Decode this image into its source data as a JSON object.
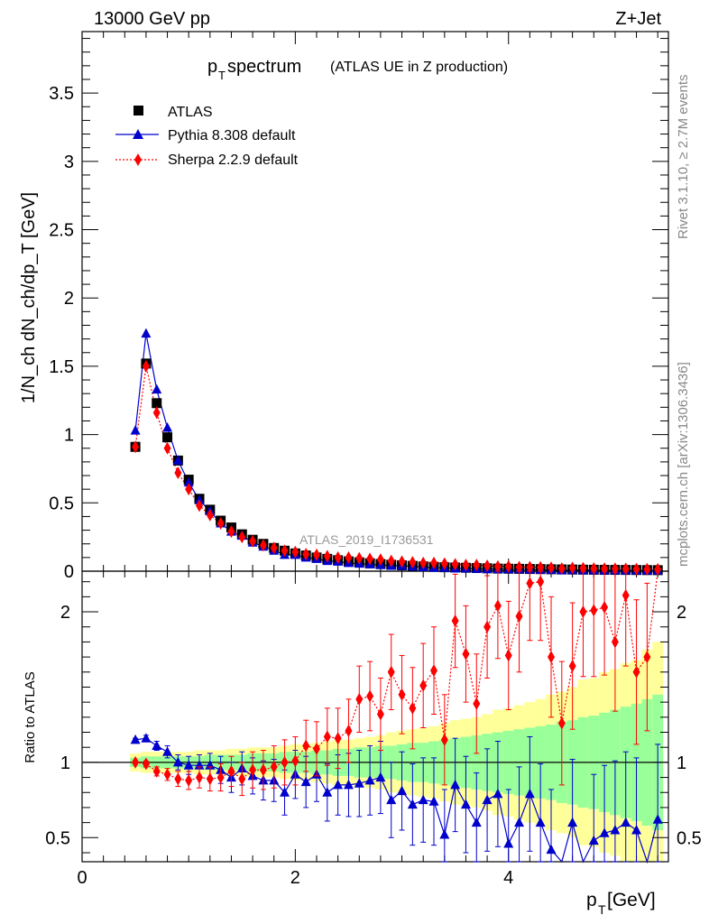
{
  "header": {
    "left": "13000 GeV pp",
    "right": "Z+Jet"
  },
  "side_labels": {
    "rivet": "Rivet 3.1.10, ≥ 2.7M events",
    "mcplots": "mcplots.cern.ch [arXiv:1306.3436]"
  },
  "watermark": "ATLAS_2019_I1736531",
  "chart_data": {
    "type": "scatter",
    "title": "p_T spectrum",
    "title_main": "p",
    "title_sub": "T",
    "title_rest": " spectrum",
    "title_note": "(ATLAS UE in Z production)",
    "xlabel": "p_T [GeV]",
    "xlabel_main": "p",
    "xlabel_sub": "T",
    "xlabel_rest": " [GeV]",
    "ylabel": "1/N_ch dN_ch/dp_T [GeV]",
    "ratio_ylabel": "Ratio to ATLAS",
    "xlim": [
      0,
      5.5
    ],
    "ylim": [
      0,
      3.95
    ],
    "ratio_ylim": [
      0.34,
      2.27
    ],
    "x_ticks": [
      "0",
      "2",
      "4"
    ],
    "y_ticks": [
      "0",
      "0.5",
      "1",
      "1.5",
      "2",
      "2.5",
      "3",
      "3.5"
    ],
    "ratio_ticks": [
      "0.5",
      "1",
      "2"
    ],
    "legend_position": "top-left",
    "x": [
      0.5,
      0.6,
      0.7,
      0.8,
      0.9,
      1.0,
      1.1,
      1.2,
      1.3,
      1.4,
      1.5,
      1.6,
      1.7,
      1.8,
      1.9,
      2.0,
      2.1,
      2.2,
      2.3,
      2.4,
      2.5,
      2.6,
      2.7,
      2.8,
      2.9,
      3.0,
      3.1,
      3.2,
      3.3,
      3.4,
      3.5,
      3.6,
      3.7,
      3.8,
      3.9,
      4.0,
      4.1,
      4.2,
      4.3,
      4.4,
      4.5,
      4.6,
      4.7,
      4.8,
      4.9,
      5.0,
      5.1,
      5.2,
      5.3,
      5.4
    ],
    "series": [
      {
        "name": "ATLAS",
        "color": "#000000",
        "marker": "square",
        "values": [
          0.91,
          1.52,
          1.23,
          0.98,
          0.81,
          0.67,
          0.53,
          0.45,
          0.37,
          0.32,
          0.27,
          0.23,
          0.2,
          0.17,
          0.15,
          0.13,
          0.115,
          0.1,
          0.09,
          0.08,
          0.072,
          0.065,
          0.058,
          0.052,
          0.047,
          0.043,
          0.039,
          0.035,
          0.032,
          0.029,
          0.027,
          0.025,
          0.023,
          0.021,
          0.019,
          0.018,
          0.017,
          0.016,
          0.015,
          0.014,
          0.013,
          0.012,
          0.011,
          0.0105,
          0.01,
          0.0095,
          0.009,
          0.0085,
          0.008,
          0.0075
        ]
      },
      {
        "name": "Pythia 8.308 default",
        "color": "#0000cc",
        "marker": "triangle",
        "values": [
          1.03,
          1.74,
          1.33,
          1.05,
          0.81,
          0.65,
          0.52,
          0.44,
          0.35,
          0.29,
          0.26,
          0.21,
          0.18,
          0.15,
          0.12,
          0.12,
          0.1,
          0.09,
          0.075,
          0.07,
          0.06,
          0.055,
          0.05,
          0.045,
          0.04,
          0.04,
          0.035,
          0.03,
          0.025,
          0.025,
          0.02,
          0.02,
          0.017,
          0.016,
          0.014,
          0.013,
          0.013,
          0.012,
          0.01,
          0.009,
          0.006,
          0.008,
          0.007,
          0.007,
          0.006,
          0.006,
          0.005,
          0.005,
          0.004,
          0.005
        ]
      },
      {
        "name": "Sherpa 2.2.9 default",
        "color": "#ff0000",
        "marker": "diamond",
        "values": [
          0.91,
          1.5,
          1.16,
          0.9,
          0.72,
          0.6,
          0.48,
          0.41,
          0.35,
          0.29,
          0.25,
          0.22,
          0.19,
          0.17,
          0.15,
          0.14,
          0.125,
          0.12,
          0.11,
          0.1,
          0.1,
          0.095,
          0.09,
          0.085,
          0.075,
          0.07,
          0.065,
          0.06,
          0.06,
          0.055,
          0.05,
          0.045,
          0.045,
          0.04,
          0.035,
          0.035,
          0.03,
          0.03,
          0.028,
          0.026,
          0.02,
          0.024,
          0.022,
          0.02,
          0.019,
          0.018,
          0.017,
          0.016,
          0.015,
          0.014
        ]
      }
    ],
    "ratio": {
      "pythia": [
        1.15,
        1.16,
        1.11,
        1.07,
        1.0,
        0.98,
        0.98,
        0.98,
        0.95,
        0.9,
        0.96,
        0.91,
        0.88,
        0.88,
        0.8,
        0.92,
        0.87,
        0.92,
        0.8,
        0.85,
        0.85,
        0.86,
        0.88,
        0.9,
        0.75,
        0.81,
        0.72,
        0.75,
        0.74,
        0.52,
        0.85,
        0.72,
        0.6,
        0.75,
        0.79,
        0.46,
        0.6,
        0.79,
        0.6,
        0.42,
        0.27,
        0.6,
        0.3,
        0.48,
        0.53,
        0.55,
        0.6,
        0.55,
        0.3,
        0.62
      ],
      "sherpa": [
        1.0,
        0.99,
        0.94,
        0.92,
        0.89,
        0.88,
        0.9,
        0.89,
        0.9,
        0.94,
        0.89,
        0.95,
        0.95,
        0.97,
        1.0,
        1.01,
        1.11,
        1.09,
        1.17,
        1.16,
        1.21,
        1.42,
        1.44,
        1.32,
        1.6,
        1.45,
        1.36,
        1.51,
        1.61,
        1.15,
        1.94,
        1.72,
        1.39,
        1.9,
        2.04,
        1.71,
        1.97,
        2.19,
        2.2,
        1.7,
        1.26,
        1.64,
        2.0,
        2.01,
        2.03,
        1.8,
        2.11,
        1.6,
        1.7,
        2.3
      ],
      "band_yellow": [
        0.06,
        0.07,
        0.07,
        0.07,
        0.07,
        0.07,
        0.08,
        0.08,
        0.08,
        0.09,
        0.09,
        0.1,
        0.1,
        0.1,
        0.11,
        0.12,
        0.12,
        0.13,
        0.14,
        0.15,
        0.15,
        0.16,
        0.17,
        0.18,
        0.2,
        0.21,
        0.22,
        0.23,
        0.24,
        0.26,
        0.28,
        0.29,
        0.3,
        0.32,
        0.35,
        0.36,
        0.38,
        0.4,
        0.42,
        0.45,
        0.47,
        0.5,
        0.55,
        0.56,
        0.6,
        0.62,
        0.66,
        0.68,
        0.75,
        0.8
      ],
      "band_green": [
        0.03,
        0.04,
        0.04,
        0.04,
        0.04,
        0.04,
        0.04,
        0.05,
        0.05,
        0.05,
        0.05,
        0.06,
        0.06,
        0.06,
        0.07,
        0.07,
        0.07,
        0.08,
        0.08,
        0.09,
        0.09,
        0.1,
        0.1,
        0.11,
        0.11,
        0.12,
        0.13,
        0.13,
        0.14,
        0.15,
        0.16,
        0.17,
        0.18,
        0.19,
        0.2,
        0.21,
        0.22,
        0.23,
        0.24,
        0.25,
        0.27,
        0.28,
        0.3,
        0.31,
        0.33,
        0.35,
        0.37,
        0.39,
        0.42,
        0.45
      ]
    }
  }
}
